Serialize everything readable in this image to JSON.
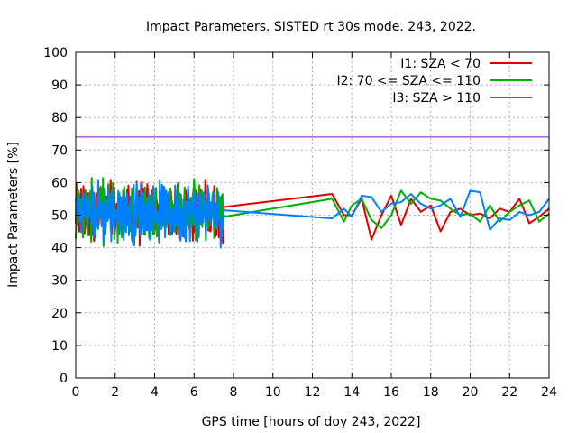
{
  "chart_data": {
    "type": "line",
    "title": "Impact Parameters. SISTED rt 30s mode. 243, 2022.",
    "xlabel": "GPS time [hours of doy 243, 2022]",
    "ylabel": "Impact Parameters [%]",
    "xlim": [
      0,
      24
    ],
    "ylim": [
      0,
      100
    ],
    "x_ticks": [
      0,
      2,
      4,
      6,
      8,
      10,
      12,
      14,
      16,
      18,
      20,
      22,
      24
    ],
    "y_ticks": [
      0,
      10,
      20,
      30,
      40,
      50,
      60,
      70,
      80,
      90,
      100
    ],
    "grid": true,
    "legend_position": "top-right",
    "reference_line": {
      "y": 74,
      "color": "#9400D3"
    },
    "dense_segment": {
      "x_start": 0,
      "x_end": 7.5,
      "center": 51,
      "amplitude": 8
    },
    "series": [
      {
        "name": "I1: SZA < 70",
        "color": "#e00000",
        "x": [
          7.5,
          13.0,
          13.6,
          14.0,
          14.5,
          15.0,
          15.5,
          16.0,
          16.5,
          17.0,
          17.5,
          18.0,
          18.5,
          19.0,
          19.5,
          20.0,
          20.5,
          21.0,
          21.5,
          22.0,
          22.5,
          23.0,
          23.5,
          24.0
        ],
        "y": [
          52.5,
          56.5,
          50.0,
          50.0,
          55.0,
          42.5,
          50.0,
          56.0,
          47.0,
          55.0,
          51.0,
          53.0,
          45.0,
          51.0,
          52.0,
          50.0,
          50.5,
          49.0,
          52.0,
          51.0,
          55.0,
          47.5,
          49.5,
          52.0
        ]
      },
      {
        "name": "I2: 70 <= SZA <= 110",
        "color": "#00b000",
        "x": [
          7.5,
          13.0,
          13.6,
          14.0,
          14.5,
          15.0,
          15.5,
          16.0,
          16.5,
          17.0,
          17.5,
          18.0,
          18.5,
          19.0,
          19.5,
          20.0,
          20.5,
          21.0,
          21.5,
          22.0,
          22.5,
          23.0,
          23.5,
          24.0
        ],
        "y": [
          49.5,
          55.0,
          48.0,
          53.0,
          55.0,
          48.5,
          46.0,
          50.0,
          57.5,
          53.5,
          57.0,
          55.0,
          54.5,
          52.0,
          50.0,
          50.5,
          48.0,
          53.0,
          48.0,
          51.0,
          53.0,
          54.5,
          48.0,
          50.5
        ]
      },
      {
        "name": "I3: SZA > 110",
        "color": "#0080ff",
        "x": [
          7.5,
          13.0,
          13.6,
          14.0,
          14.5,
          15.0,
          15.5,
          16.0,
          16.5,
          17.0,
          17.5,
          18.0,
          18.5,
          19.0,
          19.5,
          20.0,
          20.5,
          21.0,
          21.5,
          22.0,
          22.5,
          23.0,
          23.5,
          24.0
        ],
        "y": [
          51.5,
          49.0,
          52.0,
          49.5,
          56.0,
          55.5,
          51.0,
          53.5,
          54.0,
          56.5,
          53.5,
          52.0,
          53.0,
          55.0,
          49.5,
          57.5,
          57.0,
          45.5,
          49.0,
          48.5,
          51.0,
          50.0,
          51.0,
          55.0
        ]
      }
    ]
  }
}
